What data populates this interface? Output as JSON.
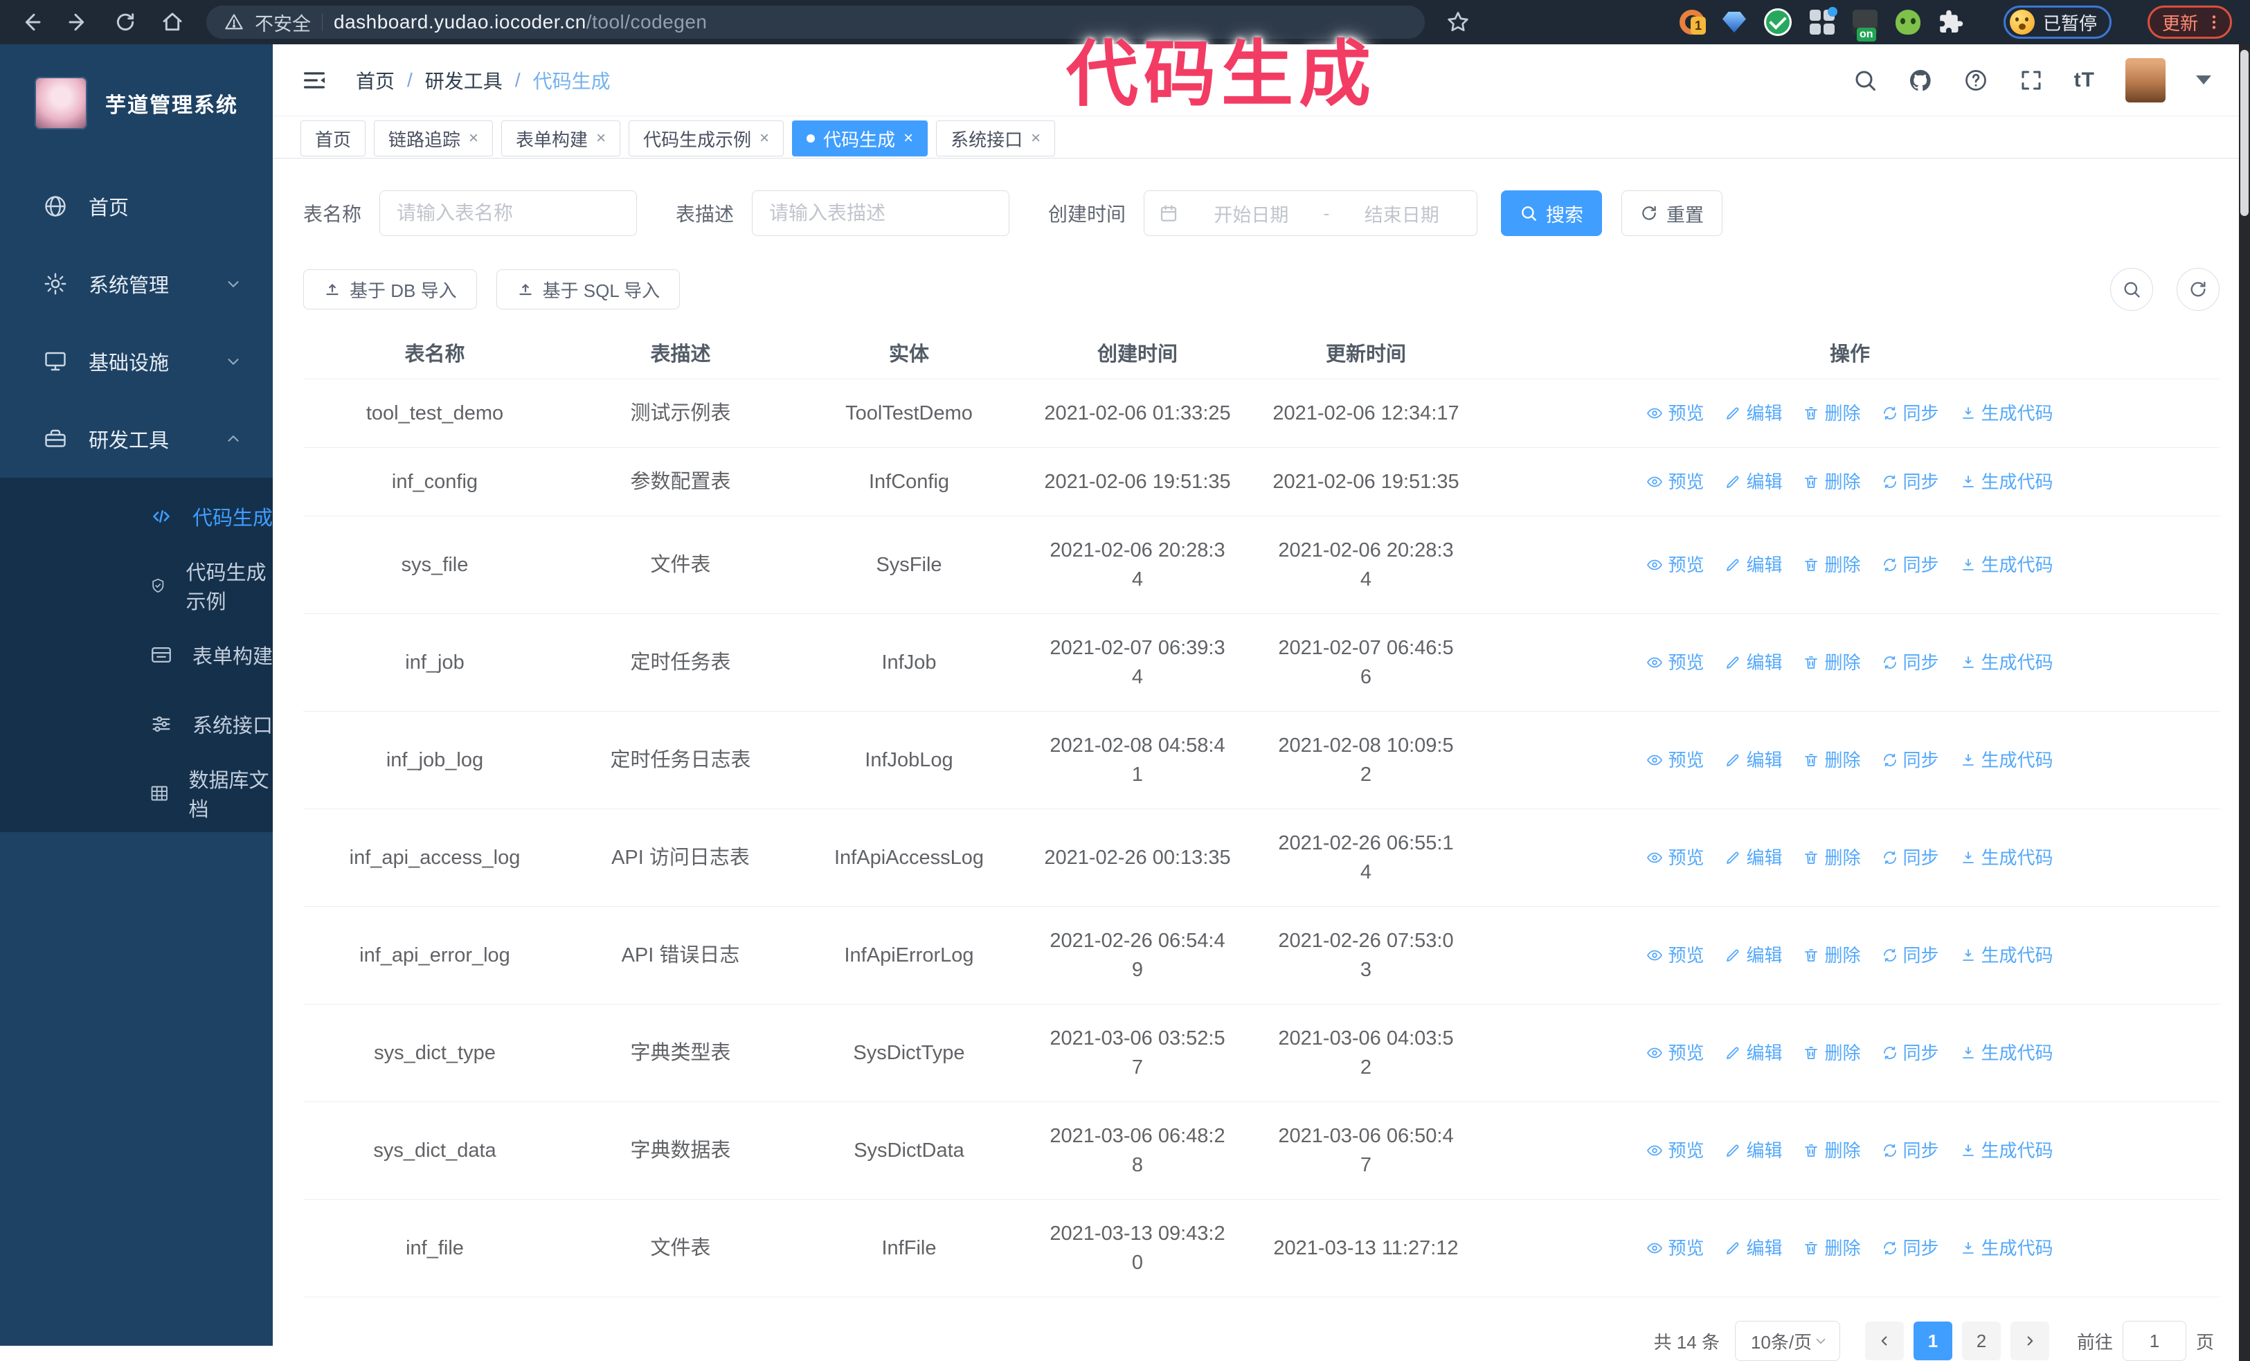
{
  "browser": {
    "security_label": "不安全",
    "url_domain": "dashboard.yudao.iocoder.cn",
    "url_path": "/tool/codegen",
    "extension_badge": "1",
    "extension_on_badge": "on",
    "profile_chip_label": "已暂停",
    "update_chip_label": "更新"
  },
  "overlay": {
    "title": "代码生成"
  },
  "sidebar": {
    "logo_title": "芋道管理系统",
    "items": [
      {
        "label": "首页"
      },
      {
        "label": "系统管理"
      },
      {
        "label": "基础设施"
      },
      {
        "label": "研发工具"
      }
    ],
    "submenu": [
      {
        "label": "代码生成",
        "active": true
      },
      {
        "label": "代码生成示例",
        "active": false
      },
      {
        "label": "表单构建",
        "active": false
      },
      {
        "label": "系统接口",
        "active": false
      },
      {
        "label": "数据库文档",
        "active": false
      }
    ]
  },
  "header": {
    "breadcrumb": [
      "首页",
      "研发工具",
      "代码生成"
    ]
  },
  "tabs": [
    {
      "label": "首页",
      "closable": false,
      "active": false
    },
    {
      "label": "链路追踪",
      "closable": true,
      "active": false
    },
    {
      "label": "表单构建",
      "closable": true,
      "active": false
    },
    {
      "label": "代码生成示例",
      "closable": true,
      "active": false
    },
    {
      "label": "代码生成",
      "closable": true,
      "active": true
    },
    {
      "label": "系统接口",
      "closable": true,
      "active": false
    }
  ],
  "filters": {
    "name_label": "表名称",
    "name_placeholder": "请输入表名称",
    "desc_label": "表描述",
    "desc_placeholder": "请输入表描述",
    "time_label": "创建时间",
    "start_placeholder": "开始日期",
    "range_separator": "-",
    "end_placeholder": "结束日期",
    "search_label": "搜索",
    "reset_label": "重置"
  },
  "toolbar": {
    "db_import_label": "基于 DB 导入",
    "sql_import_label": "基于 SQL 导入"
  },
  "table": {
    "columns": [
      "表名称",
      "表描述",
      "实体",
      "创建时间",
      "更新时间",
      "操作"
    ],
    "row_actions": [
      {
        "key": "preview",
        "label": "预览"
      },
      {
        "key": "edit",
        "label": "编辑"
      },
      {
        "key": "delete",
        "label": "删除"
      },
      {
        "key": "sync",
        "label": "同步"
      },
      {
        "key": "generate",
        "label": "生成代码"
      }
    ],
    "rows": [
      {
        "name": "tool_test_demo",
        "desc": "测试示例表",
        "entity": "ToolTestDemo",
        "created": "2021-02-06 01:33:25",
        "updated": "2021-02-06 12:34:17"
      },
      {
        "name": "inf_config",
        "desc": "参数配置表",
        "entity": "InfConfig",
        "created": "2021-02-06 19:51:35",
        "updated": "2021-02-06 19:51:35"
      },
      {
        "name": "sys_file",
        "desc": "文件表",
        "entity": "SysFile",
        "created": "2021-02-06 20:28:3\n4",
        "updated": "2021-02-06 20:28:3\n4"
      },
      {
        "name": "inf_job",
        "desc": "定时任务表",
        "entity": "InfJob",
        "created": "2021-02-07 06:39:3\n4",
        "updated": "2021-02-07 06:46:5\n6"
      },
      {
        "name": "inf_job_log",
        "desc": "定时任务日志表",
        "entity": "InfJobLog",
        "created": "2021-02-08 04:58:4\n1",
        "updated": "2021-02-08 10:09:5\n2"
      },
      {
        "name": "inf_api_access_log",
        "desc": "API 访问日志表",
        "entity": "InfApiAccessLog",
        "created": "2021-02-26 00:13:35",
        "updated": "2021-02-26 06:55:1\n4"
      },
      {
        "name": "inf_api_error_log",
        "desc": "API 错误日志",
        "entity": "InfApiErrorLog",
        "created": "2021-02-26 06:54:4\n9",
        "updated": "2021-02-26 07:53:0\n3"
      },
      {
        "name": "sys_dict_type",
        "desc": "字典类型表",
        "entity": "SysDictType",
        "created": "2021-03-06 03:52:5\n7",
        "updated": "2021-03-06 04:03:5\n2"
      },
      {
        "name": "sys_dict_data",
        "desc": "字典数据表",
        "entity": "SysDictData",
        "created": "2021-03-06 06:48:2\n8",
        "updated": "2021-03-06 06:50:4\n7"
      },
      {
        "name": "inf_file",
        "desc": "文件表",
        "entity": "InfFile",
        "created": "2021-03-13 09:43:2\n0",
        "updated": "2021-03-13 11:27:12"
      }
    ]
  },
  "pagination": {
    "total_label": "共 14 条",
    "page_size_label": "10条/页",
    "pages": [
      "1",
      "2"
    ],
    "active_page": "1",
    "goto_label": "前往",
    "goto_value": "1",
    "page_unit_label": "页"
  },
  "colors": {
    "primary": "#409eff",
    "overlay_pink": "#f23c64",
    "sidebar_bg": "#1e4264",
    "submenu_bg": "#15304b"
  }
}
